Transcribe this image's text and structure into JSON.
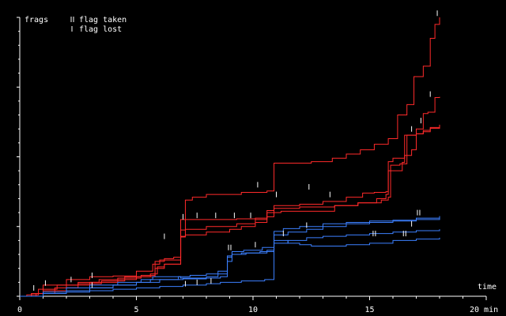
{
  "chart_data": {
    "type": "line",
    "ylabel": "frags",
    "xlabel": "time",
    "xunit": "20 min",
    "xlim": [
      0,
      20
    ],
    "ylim": [
      0,
      40
    ],
    "x_ticks": [
      "0",
      "5",
      "10",
      "15"
    ],
    "y_minor_step": 2,
    "y_major_step": 10,
    "legend": {
      "position": "top-left",
      "taken": "flag taken",
      "lost": "flag lost"
    },
    "colors": {
      "axis": "#ffffff",
      "team_red": "#ff2a2a",
      "team_blue": "#3c80ff"
    },
    "series": [
      {
        "team": "red",
        "points": [
          [
            0,
            0
          ],
          [
            0.3,
            0.2
          ],
          [
            0.8,
            1.0
          ],
          [
            1.6,
            1.6
          ],
          [
            2.5,
            2.0
          ],
          [
            3.4,
            2.4
          ],
          [
            4.2,
            2.6
          ],
          [
            5.2,
            3.0
          ],
          [
            5.8,
            5.0
          ],
          [
            6.2,
            5.4
          ],
          [
            6.6,
            5.6
          ],
          [
            6.9,
            11.0
          ],
          [
            7.1,
            13.8
          ],
          [
            7.4,
            14.2
          ],
          [
            8.0,
            14.6
          ],
          [
            9.5,
            14.9
          ],
          [
            10.6,
            15.1
          ],
          [
            10.9,
            19.1
          ],
          [
            11.2,
            19.1
          ],
          [
            12.5,
            19.3
          ],
          [
            13.4,
            19.8
          ],
          [
            14.0,
            20.4
          ],
          [
            14.6,
            21.0
          ],
          [
            15.2,
            21.8
          ],
          [
            15.8,
            22.6
          ],
          [
            16.2,
            26.0
          ],
          [
            16.6,
            27.5
          ],
          [
            16.9,
            31.5
          ],
          [
            17.3,
            33.0
          ],
          [
            17.6,
            37.0
          ],
          [
            17.8,
            39.0
          ],
          [
            18.0,
            40.0
          ]
        ]
      },
      {
        "team": "red",
        "points": [
          [
            0,
            0
          ],
          [
            0.5,
            0.4
          ],
          [
            1.0,
            1.6
          ],
          [
            2.0,
            2.4
          ],
          [
            3.0,
            2.8
          ],
          [
            4.0,
            2.9
          ],
          [
            5.0,
            3.6
          ],
          [
            5.7,
            4.6
          ],
          [
            6.0,
            5.2
          ],
          [
            6.9,
            9.5
          ],
          [
            7.1,
            11.0
          ],
          [
            8.0,
            11.0
          ],
          [
            9.3,
            11.1
          ],
          [
            10.1,
            11.2
          ],
          [
            10.6,
            11.4
          ],
          [
            10.9,
            13.0
          ],
          [
            12.0,
            13.2
          ],
          [
            13.0,
            13.6
          ],
          [
            14.0,
            14.2
          ],
          [
            14.7,
            14.8
          ],
          [
            15.2,
            14.9
          ],
          [
            15.7,
            15.0
          ],
          [
            15.8,
            19.3
          ],
          [
            16.0,
            19.8
          ],
          [
            16.5,
            20.2
          ],
          [
            16.8,
            21.0
          ],
          [
            17.0,
            24.0
          ],
          [
            17.3,
            26.2
          ],
          [
            17.5,
            26.4
          ],
          [
            17.8,
            28.5
          ],
          [
            18.0,
            28.6
          ]
        ]
      },
      {
        "team": "red",
        "points": [
          [
            0,
            0
          ],
          [
            0.5,
            0.4
          ],
          [
            1.0,
            0.8
          ],
          [
            2.0,
            1.6
          ],
          [
            3.0,
            2.0
          ],
          [
            4.2,
            2.4
          ],
          [
            5.0,
            2.8
          ],
          [
            5.8,
            4.0
          ],
          [
            6.2,
            4.6
          ],
          [
            6.9,
            8.6
          ],
          [
            7.1,
            9.6
          ],
          [
            8.0,
            10.0
          ],
          [
            9.3,
            10.4
          ],
          [
            10.1,
            11.0
          ],
          [
            10.6,
            12.3
          ],
          [
            10.9,
            12.6
          ],
          [
            12.0,
            12.8
          ],
          [
            13.5,
            13.0
          ],
          [
            14.5,
            13.4
          ],
          [
            15.3,
            14.0
          ],
          [
            15.7,
            14.6
          ],
          [
            15.8,
            18.0
          ],
          [
            16.4,
            19.2
          ],
          [
            16.5,
            23.1
          ],
          [
            17.0,
            23.3
          ],
          [
            17.3,
            23.8
          ],
          [
            17.6,
            24.2
          ],
          [
            18.0,
            24.6
          ]
        ]
      },
      {
        "team": "red",
        "points": [
          [
            0,
            0
          ],
          [
            0.7,
            0.4
          ],
          [
            1.5,
            1.2
          ],
          [
            2.5,
            1.8
          ],
          [
            3.5,
            2.2
          ],
          [
            4.5,
            2.8
          ],
          [
            5.6,
            3.2
          ],
          [
            5.9,
            4.2
          ],
          [
            6.2,
            4.6
          ],
          [
            6.9,
            8.5
          ],
          [
            7.1,
            8.8
          ],
          [
            8.0,
            9.2
          ],
          [
            9.0,
            9.6
          ],
          [
            9.5,
            10.0
          ],
          [
            10.1,
            10.6
          ],
          [
            10.6,
            12.0
          ],
          [
            11.2,
            12.2
          ],
          [
            13.5,
            13.0
          ],
          [
            14.5,
            13.4
          ],
          [
            15.5,
            13.8
          ],
          [
            15.8,
            14.2
          ],
          [
            15.9,
            18.8
          ],
          [
            16.3,
            19.0
          ],
          [
            16.6,
            23.1
          ],
          [
            17.0,
            23.3
          ],
          [
            17.3,
            23.6
          ],
          [
            17.6,
            24.1
          ],
          [
            18.0,
            24.3
          ]
        ]
      },
      {
        "team": "blue",
        "points": [
          [
            0,
            0
          ],
          [
            1.0,
            0.4
          ],
          [
            2.0,
            0.8
          ],
          [
            3.0,
            1.2
          ],
          [
            4.0,
            1.6
          ],
          [
            5.0,
            2.0
          ],
          [
            5.6,
            2.4
          ],
          [
            6.8,
            2.8
          ],
          [
            7.3,
            3.0
          ],
          [
            8.0,
            3.2
          ],
          [
            8.5,
            3.6
          ],
          [
            8.9,
            5.0
          ],
          [
            9.1,
            6.0
          ],
          [
            9.5,
            6.2
          ],
          [
            10.3,
            6.4
          ],
          [
            10.9,
            8.8
          ],
          [
            11.5,
            9.2
          ],
          [
            12.3,
            9.6
          ],
          [
            13.0,
            10.0
          ],
          [
            14.0,
            10.4
          ],
          [
            15.0,
            10.6
          ],
          [
            16.0,
            10.8
          ],
          [
            17.0,
            11.0
          ],
          [
            18.0,
            11.2
          ]
        ]
      },
      {
        "team": "blue",
        "points": [
          [
            0,
            0
          ],
          [
            1.0,
            0.6
          ],
          [
            2.0,
            1.2
          ],
          [
            3.0,
            1.6
          ],
          [
            4.2,
            2.0
          ],
          [
            5.2,
            2.4
          ],
          [
            5.7,
            2.8
          ],
          [
            6.9,
            2.6
          ],
          [
            8.0,
            2.8
          ],
          [
            8.5,
            3.2
          ],
          [
            8.9,
            5.8
          ],
          [
            9.1,
            6.4
          ],
          [
            9.6,
            6.6
          ],
          [
            10.4,
            7.0
          ],
          [
            10.9,
            9.3
          ],
          [
            11.3,
            9.7
          ],
          [
            12.0,
            10.0
          ],
          [
            13.0,
            10.4
          ],
          [
            14.0,
            10.6
          ],
          [
            15.0,
            10.8
          ],
          [
            16.0,
            10.9
          ],
          [
            17.0,
            11.2
          ],
          [
            18.0,
            11.5
          ]
        ]
      },
      {
        "team": "blue",
        "points": [
          [
            0,
            0
          ],
          [
            1.0,
            0.4
          ],
          [
            2.0,
            0.8
          ],
          [
            3.0,
            1.2
          ],
          [
            4.0,
            1.6
          ],
          [
            5.0,
            2.0
          ],
          [
            6.0,
            2.4
          ],
          [
            7.0,
            2.5
          ],
          [
            8.0,
            2.6
          ],
          [
            8.6,
            2.8
          ],
          [
            8.9,
            5.6
          ],
          [
            9.1,
            6.0
          ],
          [
            9.7,
            6.2
          ],
          [
            10.6,
            6.6
          ],
          [
            10.9,
            7.6
          ],
          [
            11.5,
            8.0
          ],
          [
            12.3,
            8.4
          ],
          [
            13.0,
            8.6
          ],
          [
            14.0,
            8.8
          ],
          [
            15.0,
            9.0
          ],
          [
            16.0,
            9.2
          ],
          [
            17.0,
            9.4
          ],
          [
            18.0,
            9.6
          ]
        ]
      },
      {
        "team": "blue",
        "points": [
          [
            0,
            0
          ],
          [
            1.0,
            0.4
          ],
          [
            2.0,
            0.6
          ],
          [
            3.0,
            0.8
          ],
          [
            4.0,
            1.0
          ],
          [
            5.0,
            1.2
          ],
          [
            6.0,
            1.4
          ],
          [
            7.0,
            1.6
          ],
          [
            8.0,
            1.8
          ],
          [
            8.6,
            2.0
          ],
          [
            8.9,
            2.0
          ],
          [
            9.5,
            2.2
          ],
          [
            10.5,
            2.4
          ],
          [
            10.9,
            8.0
          ],
          [
            11.5,
            7.6
          ],
          [
            12.0,
            7.4
          ],
          [
            12.5,
            7.2
          ],
          [
            13.0,
            7.2
          ],
          [
            14.0,
            7.4
          ],
          [
            15.0,
            7.6
          ],
          [
            16.0,
            8.0
          ],
          [
            17.0,
            8.2
          ],
          [
            18.0,
            8.4
          ]
        ]
      }
    ],
    "flag_events": [
      {
        "x": 0.6,
        "y": 0.8,
        "kind": "lost"
      },
      {
        "x": 1.1,
        "y": 1.5,
        "kind": "lost"
      },
      {
        "x": 2.2,
        "y": 2.0,
        "kind": "lost"
      },
      {
        "x": 3.1,
        "y": 2.6,
        "kind": "lost"
      },
      {
        "x": 3.1,
        "y": 1.2,
        "kind": "lost"
      },
      {
        "x": 6.2,
        "y": 8.2,
        "kind": "lost"
      },
      {
        "x": 7.0,
        "y": 11.0,
        "kind": "lost"
      },
      {
        "x": 7.6,
        "y": 11.2,
        "kind": "lost"
      },
      {
        "x": 8.4,
        "y": 11.2,
        "kind": "lost"
      },
      {
        "x": 9.2,
        "y": 11.2,
        "kind": "lost"
      },
      {
        "x": 9.9,
        "y": 11.2,
        "kind": "lost"
      },
      {
        "x": 7.1,
        "y": 1.4,
        "kind": "lost"
      },
      {
        "x": 7.6,
        "y": 1.6,
        "kind": "lost"
      },
      {
        "x": 8.2,
        "y": 1.8,
        "kind": "lost"
      },
      {
        "x": 9.0,
        "y": 6.6,
        "kind": "taken"
      },
      {
        "x": 10.1,
        "y": 7.0,
        "kind": "lost"
      },
      {
        "x": 11.3,
        "y": 8.6,
        "kind": "lost"
      },
      {
        "x": 12.3,
        "y": 9.8,
        "kind": "lost"
      },
      {
        "x": 10.2,
        "y": 15.6,
        "kind": "lost"
      },
      {
        "x": 11.0,
        "y": 14.2,
        "kind": "lost"
      },
      {
        "x": 12.4,
        "y": 15.3,
        "kind": "lost"
      },
      {
        "x": 13.3,
        "y": 14.2,
        "kind": "lost"
      },
      {
        "x": 15.2,
        "y": 8.6,
        "kind": "taken"
      },
      {
        "x": 16.5,
        "y": 8.6,
        "kind": "taken"
      },
      {
        "x": 17.1,
        "y": 11.6,
        "kind": "taken"
      },
      {
        "x": 16.8,
        "y": 10.0,
        "kind": "lost"
      },
      {
        "x": 16.8,
        "y": 23.6,
        "kind": "lost"
      },
      {
        "x": 17.2,
        "y": 24.8,
        "kind": "lost"
      },
      {
        "x": 17.6,
        "y": 28.6,
        "kind": "lost"
      },
      {
        "x": 17.9,
        "y": 40.2,
        "kind": "lost"
      }
    ]
  }
}
